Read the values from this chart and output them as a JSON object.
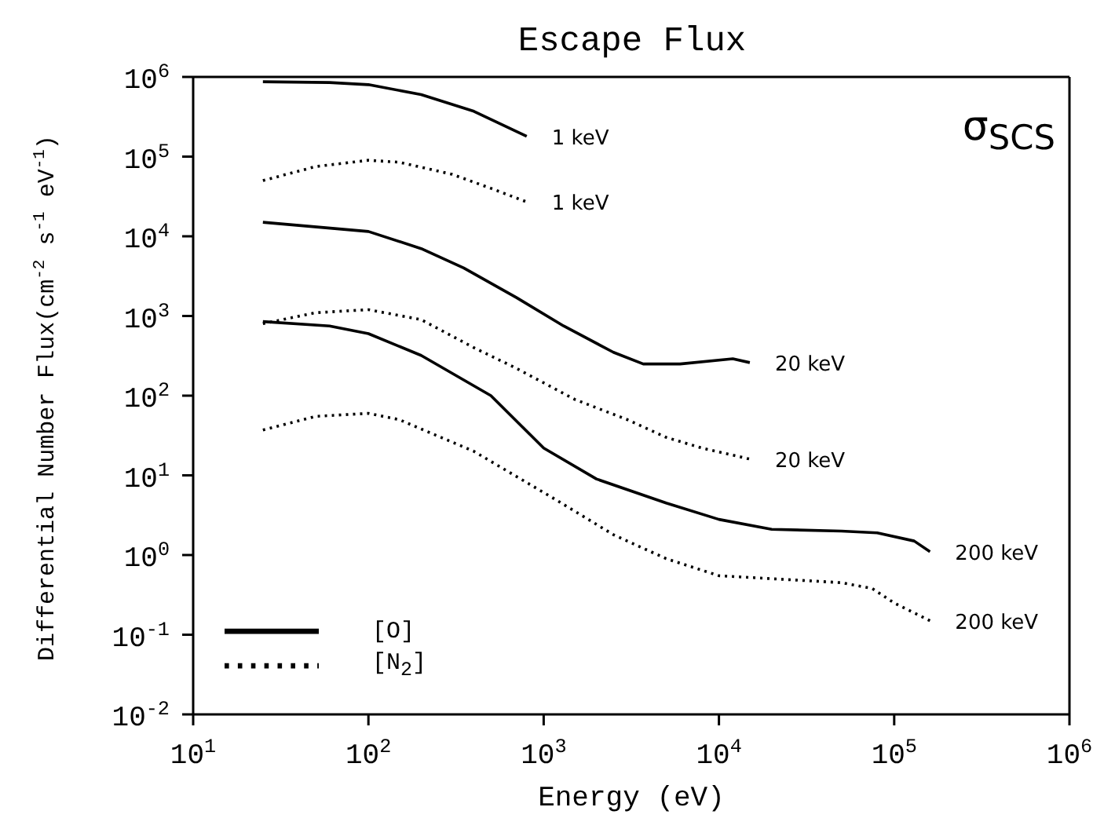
{
  "chart_data": {
    "type": "line",
    "title": "Escape Flux",
    "xlabel": "Energy (eV)",
    "ylabel": "Differential Number Flux(cm$^{-2}$ s$^{-1}$ eV$^{-1}$)",
    "log": "xy",
    "grid": false,
    "legend": "bottom left",
    "marker": "none",
    "xlim": [
      10,
      1000000
    ],
    "ylim": [
      0.01,
      1000000
    ],
    "xticks": [
      {
        "value": 10,
        "label": "10$^{1}$"
      },
      {
        "value": 100,
        "label": "10$^{2}$"
      },
      {
        "value": 1000,
        "label": "10$^{3}$"
      },
      {
        "value": 10000,
        "label": "10$^{4}$"
      },
      {
        "value": 100000,
        "label": "10$^{5}$"
      },
      {
        "value": 1000000,
        "label": "10$^{6}$"
      }
    ],
    "yticks": [
      {
        "value": 0.01,
        "label": "10$^{-2}$"
      },
      {
        "value": 0.1,
        "label": "10$^{-1}$"
      },
      {
        "value": 1,
        "label": "10$^{0}$"
      },
      {
        "value": 10,
        "label": "10$^{1}$"
      },
      {
        "value": 100,
        "label": "10$^{2}$"
      },
      {
        "value": 1000,
        "label": "10$^{3}$"
      },
      {
        "value": 10000,
        "label": "10$^{4}$"
      },
      {
        "value": 100000,
        "label": "10$^{5}$"
      },
      {
        "value": 1000000,
        "label": "10$^{6}$"
      }
    ],
    "series": [
      {
        "name": "[O]",
        "color": "#000000",
        "line_style": "solid",
        "x": [
          25,
          60,
          100,
          200,
          400,
          800
        ],
        "values": [
          870000,
          850000,
          800000,
          600000,
          370000,
          180000
        ]
      },
      {
        "name": "[N$_{2}$]",
        "color": "#000000",
        "line_style": "dotted",
        "x": [
          25,
          50,
          100,
          150,
          300,
          500,
          800
        ],
        "values": [
          50000,
          75000,
          90000,
          85000,
          60000,
          40000,
          27000
        ]
      },
      {
        "color": "#000000",
        "line_style": "solid",
        "x": [
          25,
          100,
          200,
          350,
          700,
          1300,
          2500,
          3700,
          6000,
          12000,
          15000
        ],
        "values": [
          15000,
          11500,
          7000,
          4000,
          1700,
          750,
          350,
          250,
          250,
          290,
          260
        ]
      },
      {
        "color": "#000000",
        "line_style": "dotted",
        "x": [
          25,
          50,
          100,
          200,
          400,
          700,
          1500,
          3000,
          5000,
          8000,
          15000
        ],
        "values": [
          800,
          1100,
          1200,
          900,
          400,
          220,
          90,
          50,
          30,
          22,
          16
        ]
      },
      {
        "color": "#000000",
        "line_style": "solid",
        "x": [
          25,
          60,
          100,
          200,
          500,
          1000,
          2000,
          5000,
          10000,
          20000,
          50000,
          80000,
          130000,
          160000
        ],
        "values": [
          850,
          750,
          600,
          320,
          100,
          22,
          9,
          4.5,
          2.8,
          2.1,
          2,
          1.9,
          1.5,
          1.1
        ]
      },
      {
        "color": "#000000",
        "line_style": "dotted",
        "x": [
          25,
          50,
          100,
          150,
          400,
          1200,
          2500,
          5000,
          10000,
          50000,
          75000,
          100000,
          160000
        ],
        "values": [
          37,
          55,
          60,
          50,
          20,
          4.8,
          1.8,
          0.9,
          0.55,
          0.45,
          0.38,
          0.25,
          0.15
        ]
      }
    ],
    "annotations": [
      {
        "text": "1 keV",
        "x": 800,
        "y": 180000
      },
      {
        "text": "1 keV",
        "x": 800,
        "y": 27000
      },
      {
        "text": "20 keV",
        "x": 15000,
        "y": 260
      },
      {
        "text": "20 keV",
        "x": 15000,
        "y": 16
      },
      {
        "text": "200 keV",
        "x": 160000,
        "y": 1.1
      },
      {
        "text": "200 keV",
        "x": 160000,
        "y": 0.15
      },
      "σ$_{SCS}$"
    ]
  }
}
